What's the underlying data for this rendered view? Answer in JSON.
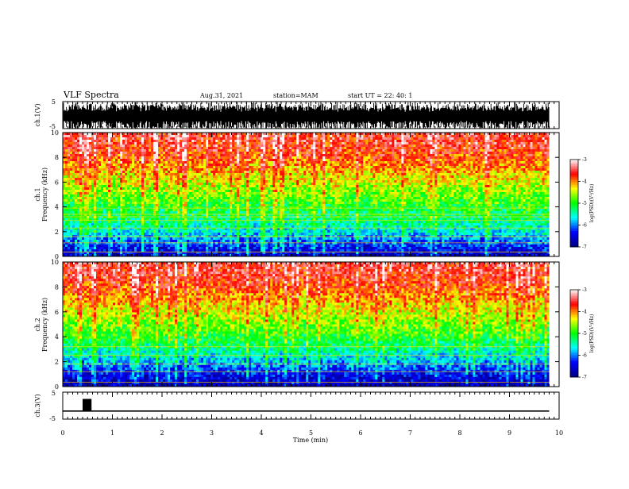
{
  "header": {
    "title": "VLF Spectra",
    "date": "Aug.31, 2021",
    "station": "station=MAM",
    "start": "start UT = 22: 40: 1"
  },
  "panels": {
    "ch1": {
      "ylabel": "ch.1(V)",
      "yticks": [
        "5",
        "-5"
      ]
    },
    "spec1": {
      "ylabel_line1": "ch.1",
      "ylabel_line2": "Frequency (kHz)",
      "yticks": [
        "10",
        "8",
        "6",
        "4",
        "2",
        "0"
      ]
    },
    "spec2": {
      "ylabel_line1": "ch.2",
      "ylabel_line2": "Frequency (kHz)",
      "yticks": [
        "10",
        "8",
        "6",
        "4",
        "2",
        "0"
      ]
    },
    "ch3": {
      "ylabel": "ch.3(V)",
      "yticks": [
        "5",
        "-5"
      ]
    }
  },
  "xaxis": {
    "label": "Time (min)",
    "ticks": [
      "0",
      "1",
      "2",
      "3",
      "4",
      "5",
      "6",
      "7",
      "8",
      "9",
      "10"
    ]
  },
  "colorbar": {
    "label": "log(PSD)(V²/Hz)",
    "ticks": [
      "-3",
      "-4",
      "-5",
      "-6",
      "-7"
    ]
  },
  "chart_data": [
    {
      "type": "line",
      "name": "ch.1 waveform",
      "ylabel": "ch.1(V)",
      "ylim": [
        -5,
        5
      ],
      "xlim": [
        0,
        10
      ],
      "description_values": "dense oscillating signal spanning approximately -5 to 5 V over 0–9.8 min"
    },
    {
      "type": "heatmap",
      "ylabel": "Frequency (kHz)",
      "xlabel": "Time (min)",
      "xlim": [
        0,
        10
      ],
      "ylim": [
        0,
        10
      ],
      "data_end_min": 9.8,
      "zlabel": "log(PSD)(V²/Hz)",
      "zlim": [
        -7,
        -3
      ],
      "colorscale": [
        "#000080",
        "#0000ff",
        "#00ffff",
        "#00ff00",
        "#ffff00",
        "#ff0000",
        "#ffffff"
      ],
      "profile_log_psd_by_freq_khz": {
        "freq": [
          0,
          1,
          2,
          3,
          4,
          5,
          6,
          7,
          8,
          9,
          10
        ],
        "log_psd": [
          -6.6,
          -6.2,
          -5.6,
          -5.3,
          -5.0,
          -4.7,
          -4.4,
          -4.1,
          -3.8,
          -3.6,
          -3.5
        ]
      },
      "horizontal_lines_khz": [
        0.35,
        1.1,
        1.6,
        2.3,
        2.9,
        3.2,
        3.4,
        3.9
      ]
    },
    {
      "type": "heatmap",
      "ylabel": "Frequency (kHz)",
      "xlabel": "Time (min)",
      "xlim": [
        0,
        10
      ],
      "ylim": [
        0,
        10
      ],
      "data_end_min": 9.8,
      "zlabel": "log(PSD)(V²/Hz)",
      "zlim": [
        -7,
        -3
      ],
      "colorscale": [
        "#000080",
        "#0000ff",
        "#00ffff",
        "#00ff00",
        "#ffff00",
        "#ff0000",
        "#ffffff"
      ],
      "profile_log_psd_by_freq_khz": {
        "freq": [
          0,
          1,
          2,
          3,
          4,
          5,
          6,
          7,
          8,
          9,
          10
        ],
        "log_psd": [
          -6.8,
          -6.4,
          -5.8,
          -5.4,
          -5.0,
          -4.7,
          -4.4,
          -4.1,
          -3.8,
          -3.6,
          -3.5
        ]
      },
      "horizontal_lines_khz": [
        0.35,
        1.2,
        1.8,
        2.5,
        3.2
      ]
    },
    {
      "type": "line",
      "name": "ch.3 waveform",
      "ylabel": "ch.3(V)",
      "ylim": [
        -5,
        5
      ],
      "xlim": [
        0,
        10
      ],
      "segments": [
        {
          "x": [
            0.4,
            0.58
          ],
          "y": [
            -2,
            2.5
          ],
          "kind": "burst"
        },
        {
          "x": [
            0,
            9.8
          ],
          "y": [
            -2,
            -2
          ],
          "kind": "flat"
        }
      ]
    }
  ]
}
